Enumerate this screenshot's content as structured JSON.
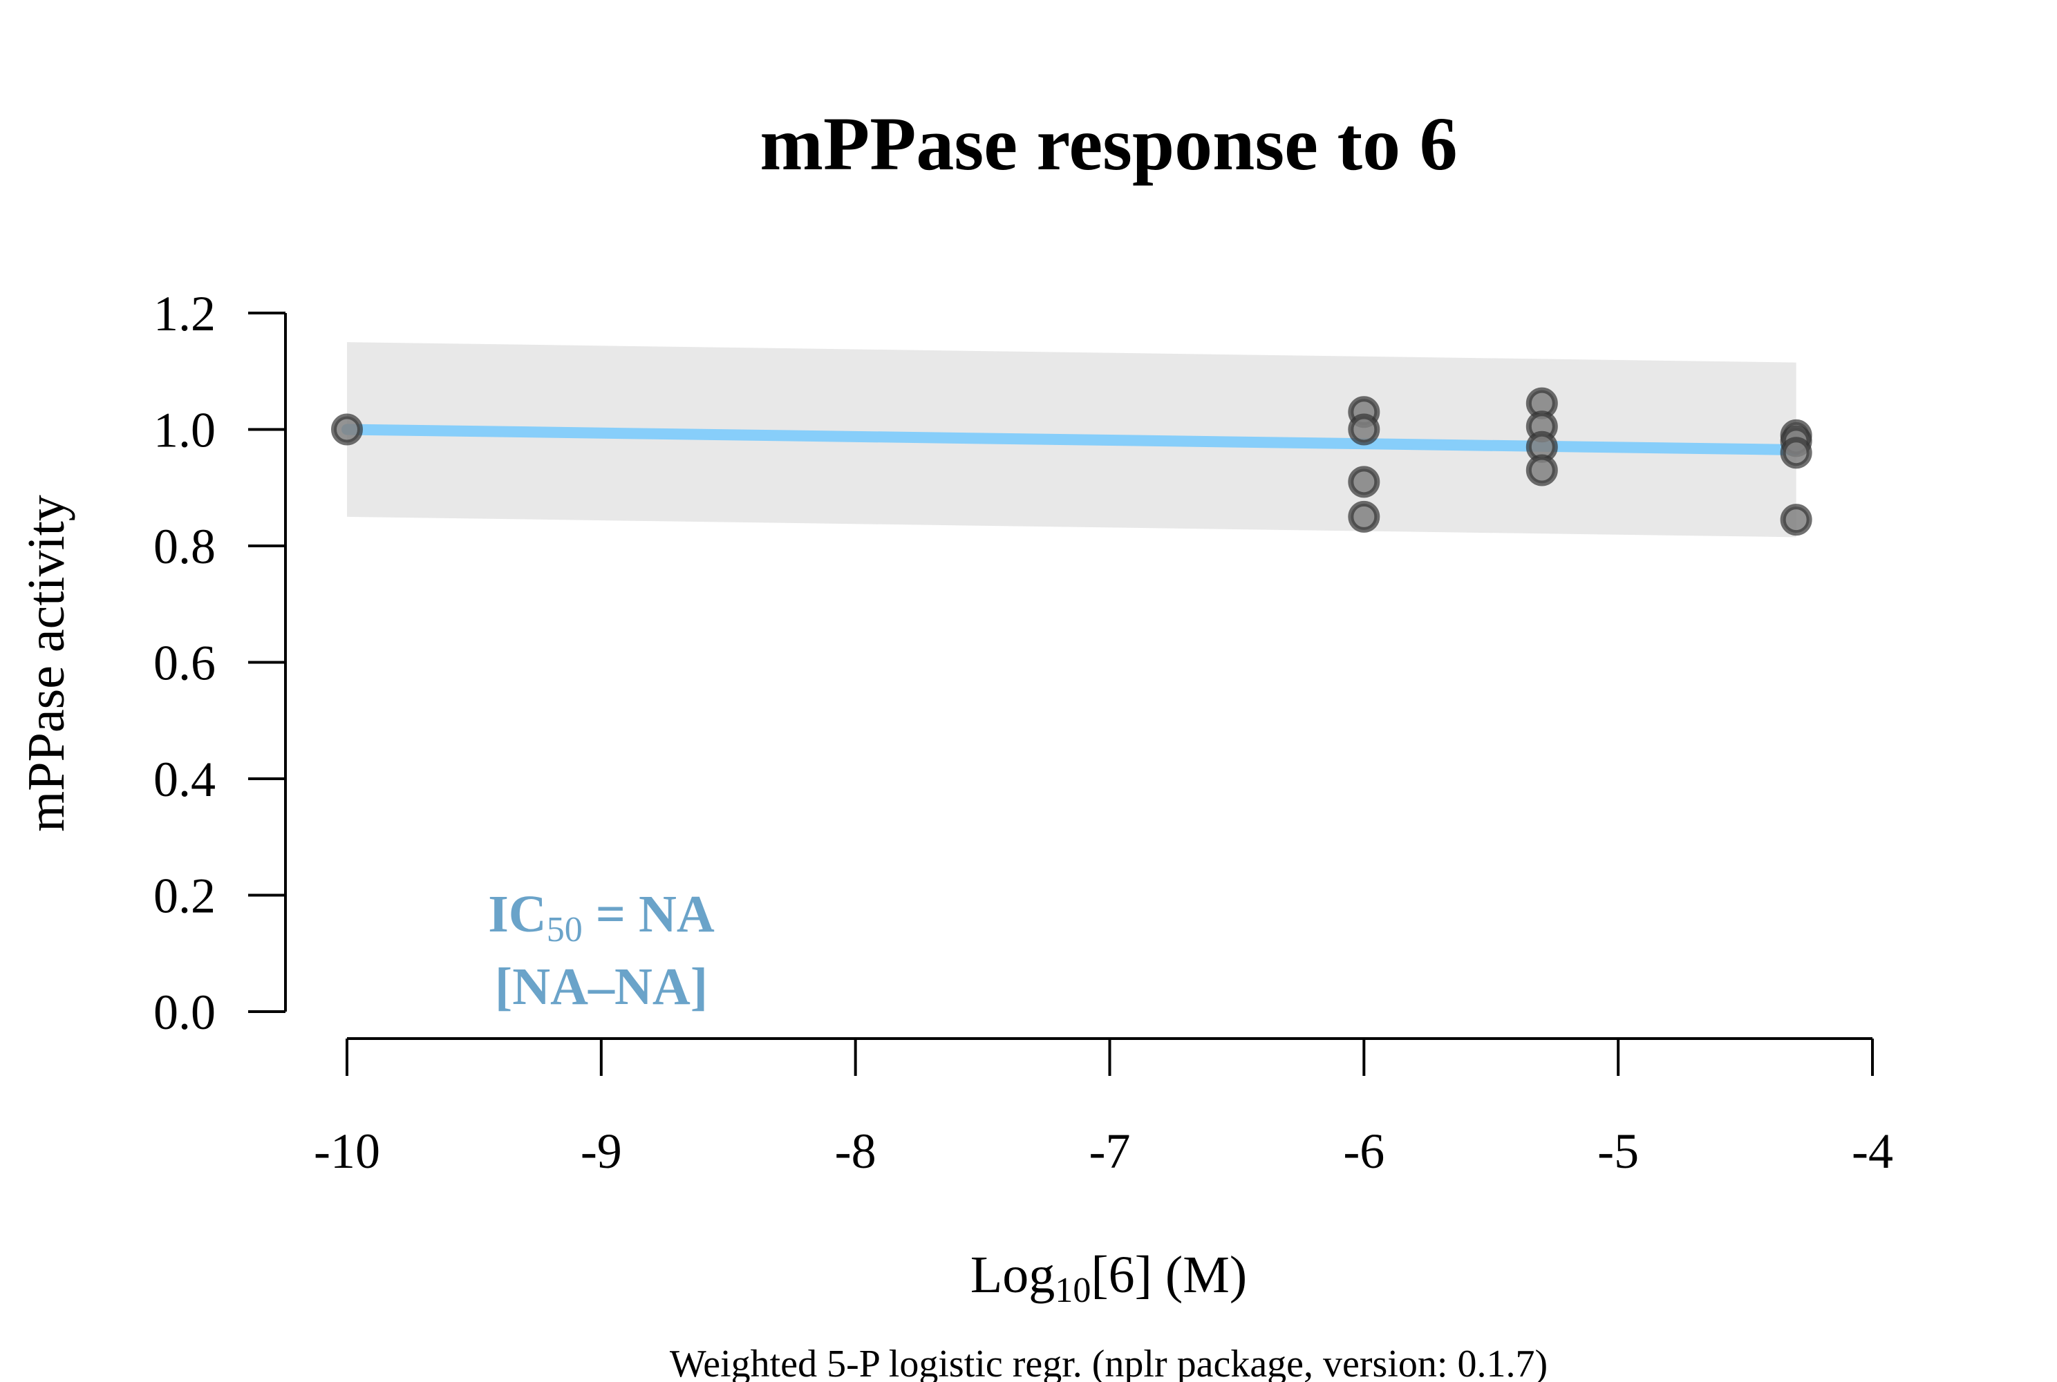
{
  "chart_data": {
    "type": "scatter",
    "title": "mPPase response to 6",
    "xlabel_parts": [
      "Log",
      "10",
      "[6] (M)"
    ],
    "ylabel": "mPPase activity",
    "x_ticks": [
      "-10",
      "-9",
      "-8",
      "-7",
      "-6",
      "-5",
      "-4"
    ],
    "y_ticks": [
      "0.0",
      "0.2",
      "0.4",
      "0.6",
      "0.8",
      "1.0",
      "1.2"
    ],
    "xlim": [
      -10,
      -4
    ],
    "ylim": [
      0,
      1.2
    ],
    "points": [
      {
        "x": -10,
        "y": 1.0
      },
      {
        "x": -6,
        "y": 1.03
      },
      {
        "x": -6,
        "y": 1.0
      },
      {
        "x": -6,
        "y": 0.91
      },
      {
        "x": -6,
        "y": 0.85
      },
      {
        "x": -5.3,
        "y": 1.045
      },
      {
        "x": -5.3,
        "y": 1.005
      },
      {
        "x": -5.3,
        "y": 0.97
      },
      {
        "x": -5.3,
        "y": 0.93
      },
      {
        "x": -4.3,
        "y": 0.99
      },
      {
        "x": -4.3,
        "y": 0.98
      },
      {
        "x": -4.3,
        "y": 0.96
      },
      {
        "x": -4.3,
        "y": 0.845
      }
    ],
    "fit_line": {
      "color": "#87cefa",
      "points": [
        {
          "x": -10,
          "y": 1.0
        },
        {
          "x": -4.3,
          "y": 0.965
        }
      ]
    },
    "confidence_band": {
      "color": "#e8e8e8",
      "upper": [
        {
          "x": -10,
          "y": 1.15
        },
        {
          "x": -4.3,
          "y": 1.115
        }
      ],
      "lower": [
        {
          "x": -10,
          "y": 0.85
        },
        {
          "x": -4.3,
          "y": 0.815
        }
      ]
    },
    "annotation": {
      "label": "IC",
      "sub": "50",
      "value": " = NA",
      "range": "[NA–NA]"
    },
    "footnote": "Weighted 5-P logistic regr. (nplr package, version: 0.1.7)",
    "grid": false,
    "legend": "none"
  }
}
